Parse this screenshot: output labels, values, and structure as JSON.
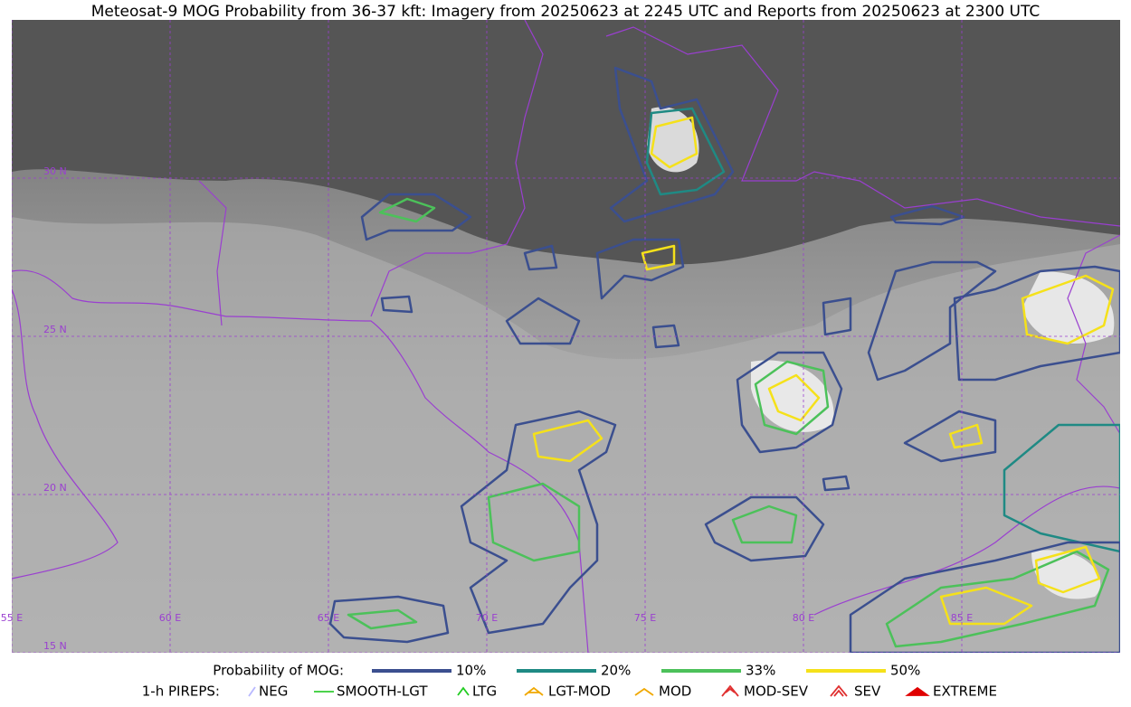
{
  "title": "Meteosat-9 MOG Probability from 36-37 kft: Imagery from 20250623 at 2245 UTC and Reports from 20250623 at 2300 UTC",
  "map": {
    "lon_labels": [
      "55 E",
      "60 E",
      "65 E",
      "70 E",
      "75 E",
      "80 E",
      "85 E"
    ],
    "lat_labels": [
      "30 N",
      "25 N",
      "20 N",
      "15 N"
    ]
  },
  "legend": {
    "probability": {
      "label": "Probability of MOG:",
      "entries": [
        {
          "name": "10%",
          "color": "#3b4f8f"
        },
        {
          "name": "20%",
          "color": "#1f8a84"
        },
        {
          "name": "33%",
          "color": "#4cc15a"
        },
        {
          "name": "50%",
          "color": "#f5e11a"
        }
      ]
    },
    "pireps": {
      "label": "1-h PIREPS:",
      "entries": [
        {
          "name": "NEG",
          "color": "#b8b8ff"
        },
        {
          "name": "SMOOTH-LGT",
          "color": "#33cc33"
        },
        {
          "name": "LTG",
          "color": "#22cc22"
        },
        {
          "name": "LGT-MOD",
          "color": "#f0a800"
        },
        {
          "name": "MOD",
          "color": "#f0a800"
        },
        {
          "name": "MOD-SEV",
          "color": "#e03030"
        },
        {
          "name": "SEV",
          "color": "#e03030"
        },
        {
          "name": "EXTREME",
          "color": "#e00000"
        }
      ]
    }
  }
}
